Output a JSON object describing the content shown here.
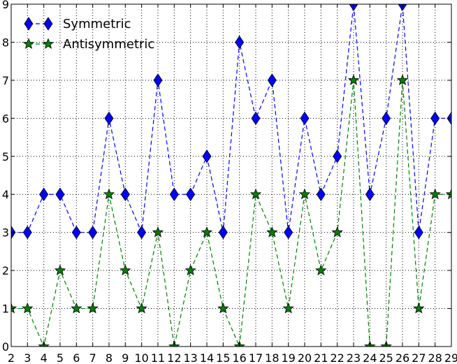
{
  "chart_data": {
    "type": "line",
    "title": "",
    "xlabel": "",
    "ylabel": "",
    "x": [
      2,
      3,
      4,
      5,
      6,
      7,
      8,
      9,
      10,
      11,
      12,
      13,
      14,
      15,
      16,
      17,
      18,
      19,
      20,
      21,
      22,
      23,
      24,
      25,
      26,
      27,
      28,
      29
    ],
    "xlim": [
      2,
      29
    ],
    "ylim": [
      0,
      9
    ],
    "xticks": [
      "2",
      "3",
      "4",
      "5",
      "6",
      "7",
      "8",
      "9",
      "10",
      "11",
      "12",
      "13",
      "14",
      "15",
      "16",
      "17",
      "18",
      "19",
      "20",
      "21",
      "22",
      "23",
      "24",
      "25",
      "26",
      "27",
      "28",
      "29"
    ],
    "yticks": [
      "0",
      "1",
      "2",
      "3",
      "4",
      "5",
      "6",
      "7",
      "8",
      "9"
    ],
    "grid": true,
    "legend_position": "top-left",
    "series": [
      {
        "name": "Symmetric",
        "marker": "diamond",
        "line_style": "dashed",
        "color": "#0000ff",
        "values": [
          3,
          3,
          4,
          4,
          3,
          3,
          6,
          4,
          3,
          7,
          4,
          4,
          5,
          3,
          8,
          6,
          7,
          3,
          6,
          4,
          5,
          9,
          4,
          6,
          9,
          3,
          6,
          6
        ]
      },
      {
        "name": "Antisymmetric",
        "marker": "star",
        "line_style": "dashed",
        "color": "#007f00",
        "values": [
          1,
          1,
          0,
          2,
          1,
          1,
          4,
          2,
          1,
          3,
          0,
          2,
          3,
          1,
          0,
          4,
          3,
          1,
          4,
          2,
          3,
          7,
          0,
          0,
          7,
          1,
          4,
          4
        ]
      }
    ]
  }
}
